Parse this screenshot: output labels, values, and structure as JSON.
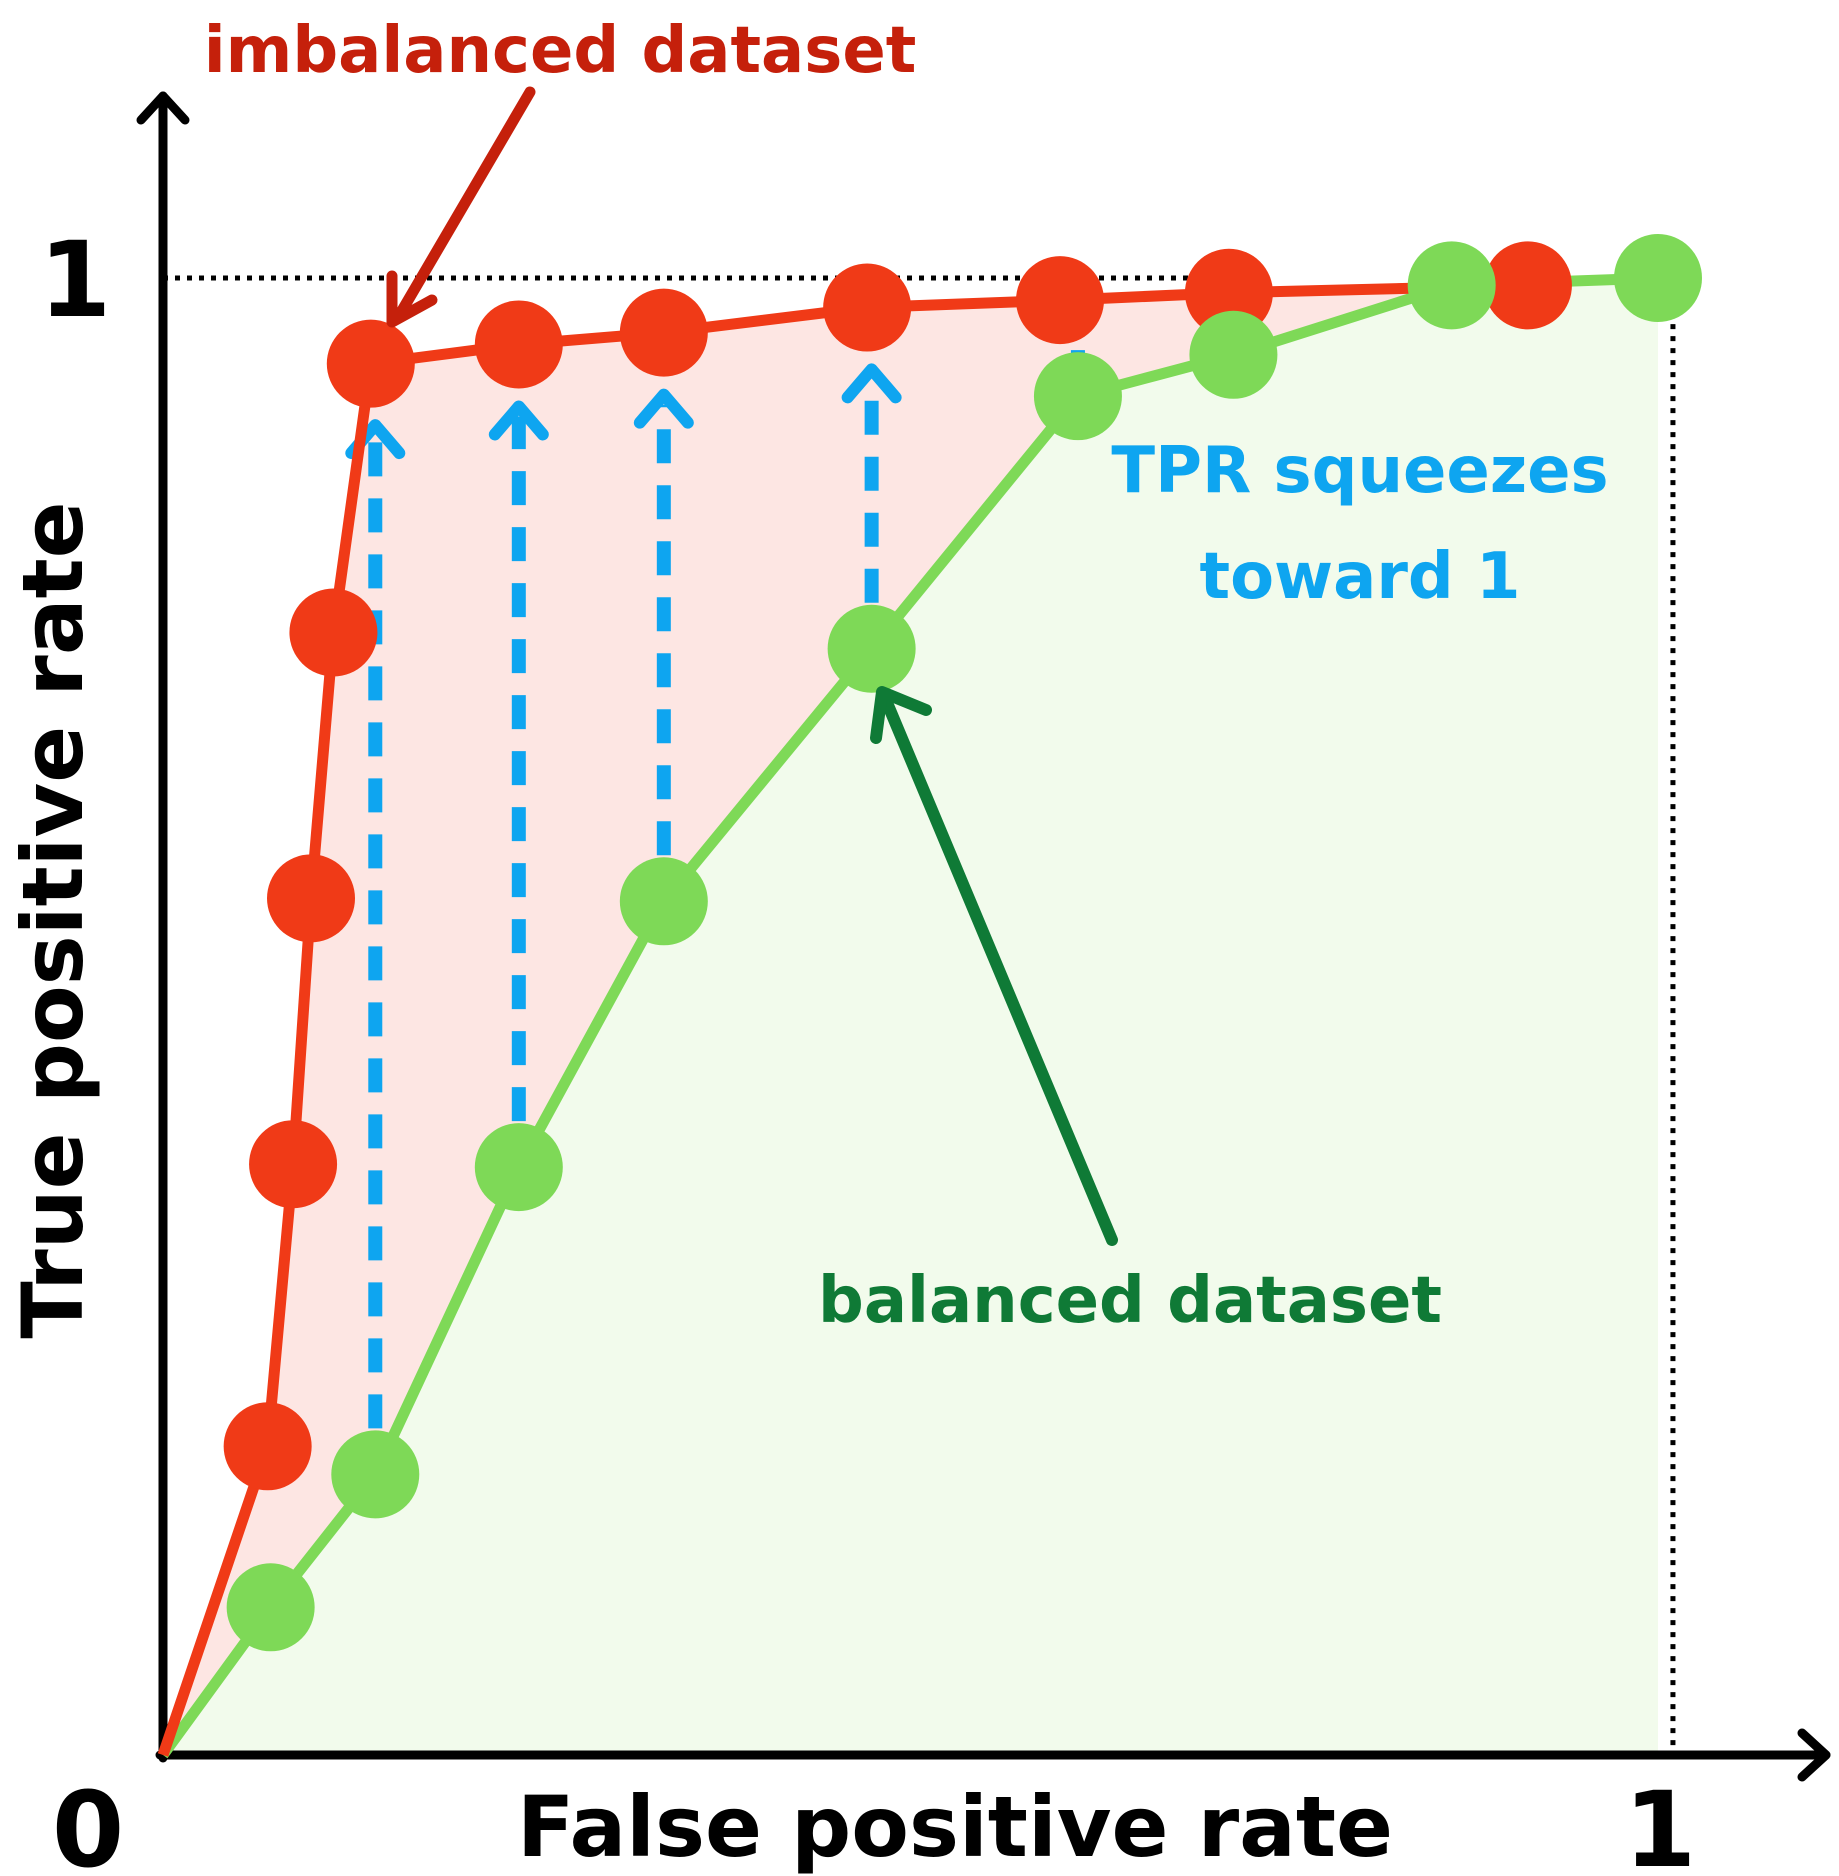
{
  "chart_data": {
    "type": "line",
    "xlabel": "False positive rate",
    "ylabel": "True positive rate",
    "xlim": [
      0,
      1
    ],
    "ylim": [
      0,
      1
    ],
    "x_ticks": [
      {
        "value": 0,
        "label": "0"
      },
      {
        "value": 1,
        "label": "1"
      }
    ],
    "y_ticks": [
      {
        "value": 1,
        "label": "1"
      }
    ],
    "grid": false,
    "series": [
      {
        "name": "imbalanced dataset",
        "color": "#f03a17",
        "fill": "#fde6e3",
        "points": [
          [
            0.0,
            0.0
          ],
          [
            0.07,
            0.209
          ],
          [
            0.087,
            0.4
          ],
          [
            0.099,
            0.58
          ],
          [
            0.114,
            0.76
          ],
          [
            0.139,
            0.942
          ],
          [
            0.238,
            0.955
          ],
          [
            0.335,
            0.963
          ],
          [
            0.471,
            0.98
          ],
          [
            0.6,
            0.985
          ],
          [
            0.713,
            0.99
          ],
          [
            0.913,
            0.995
          ]
        ]
      },
      {
        "name": "balanced dataset",
        "color": "#7ed957",
        "fill": "#f2fbec",
        "points": [
          [
            0.0,
            0.0
          ],
          [
            0.072,
            0.1
          ],
          [
            0.142,
            0.19
          ],
          [
            0.238,
            0.398
          ],
          [
            0.335,
            0.578
          ],
          [
            0.474,
            0.749
          ],
          [
            0.612,
            0.92
          ],
          [
            0.716,
            0.948
          ],
          [
            0.862,
            0.995
          ],
          [
            1.0,
            1.0
          ]
        ]
      }
    ],
    "shift_arrows": {
      "color": "#0ea5f0",
      "x": [
        0.142,
        0.238,
        0.335,
        0.474,
        0.612
      ]
    },
    "annotations": {
      "imbalanced_label": "imbalanced dataset",
      "imbalanced_color": "#c5200b",
      "balanced_label": "balanced dataset",
      "balanced_color": "#0f7a36",
      "tpr_note_line1": "TPR squeezes",
      "tpr_note_line2": "toward 1",
      "tpr_note_color": "#0ea5f0"
    }
  }
}
